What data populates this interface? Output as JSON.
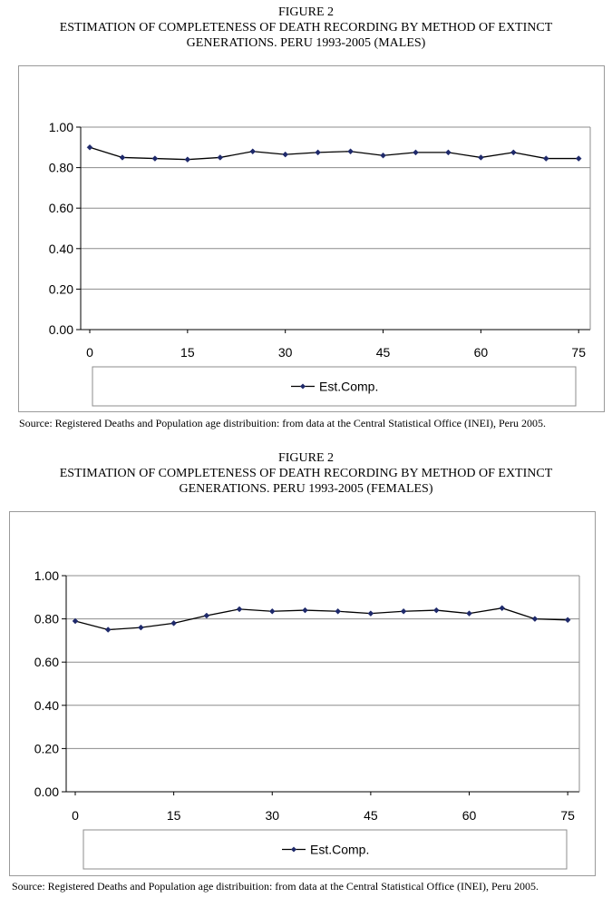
{
  "figures": [
    {
      "label": "FIGURE 2",
      "title_line1": "ESTIMATION OF COMPLETENESS OF DEATH RECORDING BY METHOD OF EXTINCT",
      "title_line2": "GENERATIONS. PERU 1993-2005 (MALES)",
      "source": "Source:  Registered Deaths and Population age distribuition: from data at the Central Statistical Office (INEI), Peru 2005."
    },
    {
      "label": "FIGURE 2",
      "title_line1": "ESTIMATION OF COMPLETENESS OF DEATH RECORDING BY METHOD OF EXTINCT",
      "title_line2": "GENERATIONS. PERU 1993-2005 (FEMALES)",
      "source": "Source:  Registered Deaths and Population age distribuition: from data at the Central Statistical Office (INEI), Peru 2005."
    }
  ],
  "chart_data": [
    {
      "type": "line",
      "title": "ESTIMATION OF COMPLETENESS OF DEATH RECORDING BY METHOD OF EXTINCT GENERATIONS. PERU 1993-2005 (MALES)",
      "xlabel": "",
      "ylabel": "",
      "x": [
        0,
        5,
        10,
        15,
        20,
        25,
        30,
        35,
        40,
        45,
        50,
        55,
        60,
        65,
        70,
        75
      ],
      "x_ticks": [
        "0",
        "15",
        "30",
        "45",
        "60",
        "75"
      ],
      "x_tick_values": [
        0,
        15,
        30,
        45,
        60,
        75
      ],
      "y_ticks": [
        "0.00",
        "0.20",
        "0.40",
        "0.60",
        "0.80",
        "1.00"
      ],
      "ylim": [
        0,
        1
      ],
      "grid": true,
      "legend_position": "bottom",
      "series": [
        {
          "name": "Est.Comp.",
          "values": [
            0.9,
            0.85,
            0.845,
            0.84,
            0.85,
            0.88,
            0.865,
            0.875,
            0.88,
            0.86,
            0.875,
            0.875,
            0.85,
            0.875,
            0.845,
            0.845
          ]
        }
      ],
      "line_color": "#000000",
      "marker_color": "#1f2a6b"
    },
    {
      "type": "line",
      "title": "ESTIMATION OF COMPLETENESS OF DEATH RECORDING BY METHOD OF EXTINCT GENERATIONS. PERU 1993-2005 (FEMALES)",
      "xlabel": "",
      "ylabel": "",
      "x": [
        0,
        5,
        10,
        15,
        20,
        25,
        30,
        35,
        40,
        45,
        50,
        55,
        60,
        65,
        70,
        75
      ],
      "x_ticks": [
        "0",
        "15",
        "30",
        "45",
        "60",
        "75"
      ],
      "x_tick_values": [
        0,
        15,
        30,
        45,
        60,
        75
      ],
      "y_ticks": [
        "0.00",
        "0.20",
        "0.40",
        "0.60",
        "0.80",
        "1.00"
      ],
      "ylim": [
        0,
        1
      ],
      "grid": true,
      "legend_position": "bottom",
      "series": [
        {
          "name": "Est.Comp.",
          "values": [
            0.79,
            0.75,
            0.76,
            0.78,
            0.815,
            0.845,
            0.835,
            0.84,
            0.835,
            0.825,
            0.835,
            0.84,
            0.825,
            0.85,
            0.8,
            0.795
          ]
        }
      ],
      "line_color": "#000000",
      "marker_color": "#1f2a6b"
    }
  ]
}
